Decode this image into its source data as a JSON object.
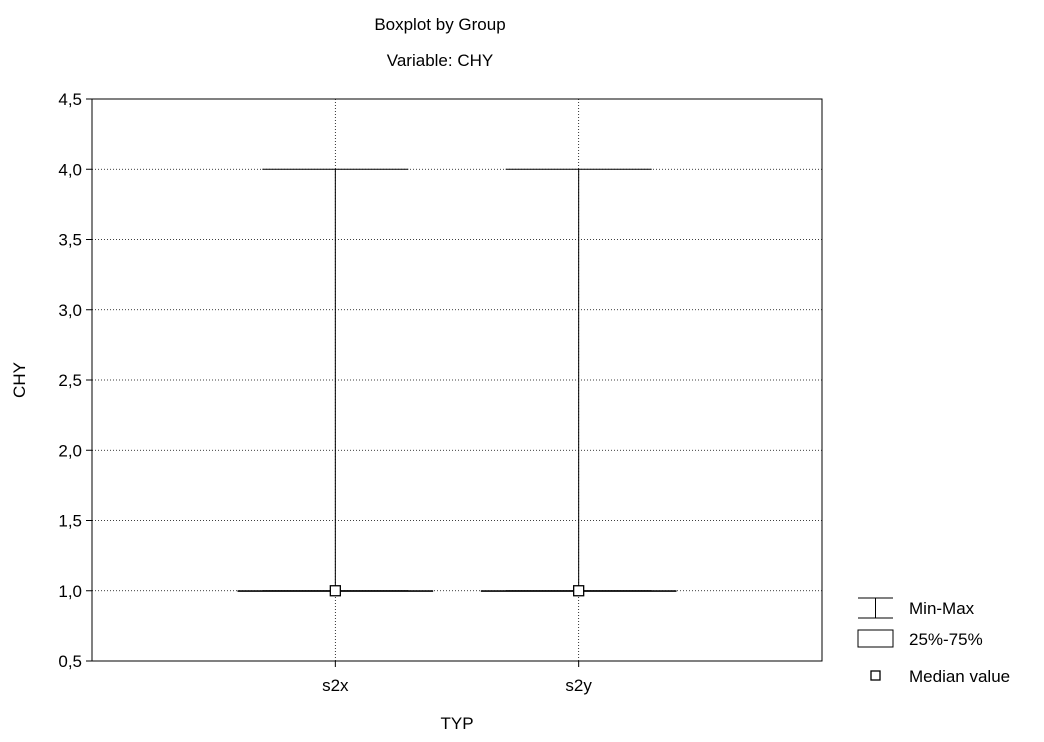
{
  "chart_data": {
    "type": "boxplot",
    "title": "Boxplot by Group",
    "subtitle": "Variable: CHY",
    "xlabel": "TYP",
    "ylabel": "CHY",
    "categories": [
      "s2x",
      "s2y"
    ],
    "ylim": [
      0.5,
      4.5
    ],
    "yticks": [
      0.5,
      1.0,
      1.5,
      2.0,
      2.5,
      3.0,
      3.5,
      4.0,
      4.5
    ],
    "ytick_labels": [
      "0,5",
      "1,0",
      "1,5",
      "2,0",
      "2,5",
      "3,0",
      "3,5",
      "4,0",
      "4,5"
    ],
    "grid": true,
    "legend_position": "bottom-right",
    "groups": [
      {
        "category": "s2x",
        "min": 1.0,
        "q1": 1.0,
        "median": 1.0,
        "q3": 1.0,
        "max": 4.0
      },
      {
        "category": "s2y",
        "min": 1.0,
        "q1": 1.0,
        "median": 1.0,
        "q3": 1.0,
        "max": 4.0
      }
    ],
    "legend": [
      {
        "symbol": "min-max",
        "label": "Min-Max"
      },
      {
        "symbol": "box",
        "label": "25%-75%"
      },
      {
        "symbol": "median",
        "label": "Median value"
      }
    ]
  }
}
